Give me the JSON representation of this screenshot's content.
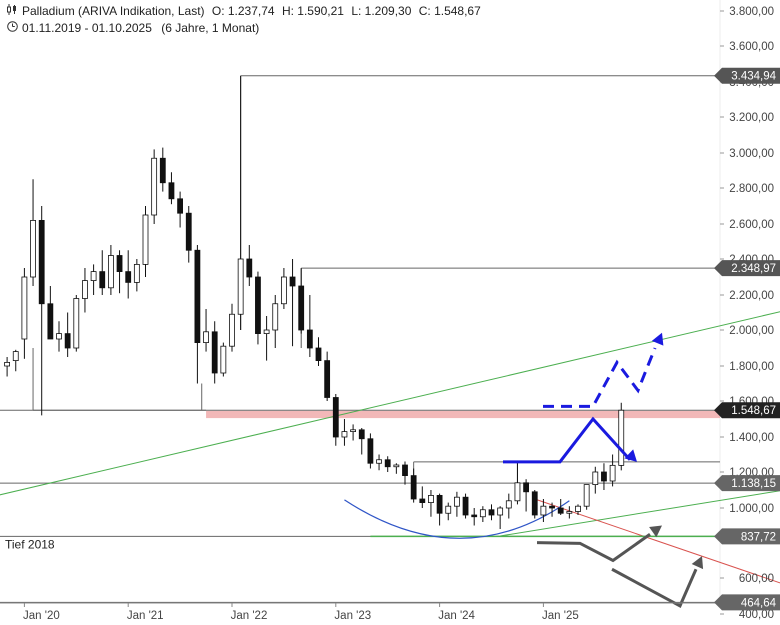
{
  "header": {
    "line1_icon": "candlestick-icon",
    "title": "Palladium (ARIVA Indikation, Last)",
    "open": "O: 1.237,74",
    "high": "H: 1.590,21",
    "low": "L: 1.209,30",
    "close": "C: 1.548,67",
    "line2_icon": "clock-icon",
    "range": "01.11.2019 - 01.10.2025",
    "duration": "(6 Jahre, 1 Monat)"
  },
  "chart_data": {
    "type": "candlestick",
    "interval": "monthly",
    "yaxis": {
      "position": "right",
      "ylim": [
        400,
        3900
      ],
      "ticks": [
        {
          "v": 400,
          "label": "400,00"
        },
        {
          "v": 600,
          "label": "600,00"
        },
        {
          "v": 1000,
          "label": "1.000,00"
        },
        {
          "v": 1200,
          "label": "1.200,00"
        },
        {
          "v": 1400,
          "label": "1.400,00"
        },
        {
          "v": 1600,
          "label": "1.600,00"
        },
        {
          "v": 1800,
          "label": "1.800,00"
        },
        {
          "v": 2000,
          "label": "2.000,00"
        },
        {
          "v": 2200,
          "label": "2.200,00"
        },
        {
          "v": 2400,
          "label": "2.400,00"
        },
        {
          "v": 2600,
          "label": "2.600,00"
        },
        {
          "v": 2800,
          "label": "2.800,00"
        },
        {
          "v": 3000,
          "label": "3.000,00"
        },
        {
          "v": 3200,
          "label": "3.200,00"
        },
        {
          "v": 3400,
          "label": "3.400,00"
        },
        {
          "v": 3600,
          "label": "3.600,00"
        },
        {
          "v": 3800,
          "label": "3.800,00"
        }
      ]
    },
    "xaxis": {
      "ticks": [
        {
          "i": 2,
          "label": "Jan '20"
        },
        {
          "i": 14,
          "label": "Jan '21"
        },
        {
          "i": 26,
          "label": "Jan '22"
        },
        {
          "i": 38,
          "label": "Jan '23"
        },
        {
          "i": 50,
          "label": "Jan '24"
        },
        {
          "i": 62,
          "label": "Jan '25"
        }
      ]
    },
    "candles": [
      {
        "o": 1800,
        "h": 1850,
        "l": 1740,
        "c": 1820
      },
      {
        "o": 1830,
        "h": 1890,
        "l": 1770,
        "c": 1880
      },
      {
        "o": 1950,
        "h": 2350,
        "l": 1840,
        "c": 2300
      },
      {
        "o": 2300,
        "h": 2850,
        "l": 2250,
        "c": 2620
      },
      {
        "o": 2620,
        "h": 2700,
        "l": 1520,
        "c": 2150
      },
      {
        "o": 2150,
        "h": 2250,
        "l": 1950,
        "c": 1950
      },
      {
        "o": 1950,
        "h": 2050,
        "l": 1880,
        "c": 1980
      },
      {
        "o": 1980,
        "h": 2100,
        "l": 1850,
        "c": 1900
      },
      {
        "o": 1900,
        "h": 2200,
        "l": 1880,
        "c": 2180
      },
      {
        "o": 2180,
        "h": 2350,
        "l": 2100,
        "c": 2280
      },
      {
        "o": 2280,
        "h": 2370,
        "l": 2200,
        "c": 2330
      },
      {
        "o": 2330,
        "h": 2450,
        "l": 2200,
        "c": 2240
      },
      {
        "o": 2240,
        "h": 2480,
        "l": 2200,
        "c": 2420
      },
      {
        "o": 2420,
        "h": 2450,
        "l": 2210,
        "c": 2330
      },
      {
        "o": 2330,
        "h": 2450,
        "l": 2180,
        "c": 2270
      },
      {
        "o": 2270,
        "h": 2400,
        "l": 2220,
        "c": 2370
      },
      {
        "o": 2370,
        "h": 2700,
        "l": 2300,
        "c": 2650
      },
      {
        "o": 2650,
        "h": 3020,
        "l": 2600,
        "c": 2970
      },
      {
        "o": 2970,
        "h": 3030,
        "l": 2780,
        "c": 2830
      },
      {
        "o": 2830,
        "h": 2890,
        "l": 2710,
        "c": 2740
      },
      {
        "o": 2740,
        "h": 2780,
        "l": 2580,
        "c": 2660
      },
      {
        "o": 2660,
        "h": 2700,
        "l": 2380,
        "c": 2450
      },
      {
        "o": 2450,
        "h": 2480,
        "l": 1700,
        "c": 1930
      },
      {
        "o": 1930,
        "h": 2120,
        "l": 1880,
        "c": 1990
      },
      {
        "o": 1990,
        "h": 2050,
        "l": 1700,
        "c": 1760
      },
      {
        "o": 1760,
        "h": 1930,
        "l": 1740,
        "c": 1910
      },
      {
        "o": 1910,
        "h": 2150,
        "l": 1880,
        "c": 2090
      },
      {
        "o": 2090,
        "h": 3434,
        "l": 2000,
        "c": 2400
      },
      {
        "o": 2400,
        "h": 2480,
        "l": 2250,
        "c": 2300
      },
      {
        "o": 2300,
        "h": 2330,
        "l": 1920,
        "c": 1980
      },
      {
        "o": 1980,
        "h": 2080,
        "l": 1830,
        "c": 2000
      },
      {
        "o": 2000,
        "h": 2200,
        "l": 1900,
        "c": 2150
      },
      {
        "o": 2150,
        "h": 2350,
        "l": 2120,
        "c": 2300
      },
      {
        "o": 2300,
        "h": 2400,
        "l": 1910,
        "c": 2250
      },
      {
        "o": 2250,
        "h": 2349,
        "l": 1980,
        "c": 2000
      },
      {
        "o": 2000,
        "h": 2200,
        "l": 1850,
        "c": 1900
      },
      {
        "o": 1900,
        "h": 1960,
        "l": 1800,
        "c": 1830
      },
      {
        "o": 1830,
        "h": 1880,
        "l": 1600,
        "c": 1620
      },
      {
        "o": 1620,
        "h": 1640,
        "l": 1350,
        "c": 1400
      },
      {
        "o": 1400,
        "h": 1500,
        "l": 1350,
        "c": 1430
      },
      {
        "o": 1430,
        "h": 1470,
        "l": 1380,
        "c": 1440
      },
      {
        "o": 1440,
        "h": 1450,
        "l": 1300,
        "c": 1390
      },
      {
        "o": 1390,
        "h": 1420,
        "l": 1220,
        "c": 1250
      },
      {
        "o": 1250,
        "h": 1300,
        "l": 1210,
        "c": 1270
      },
      {
        "o": 1270,
        "h": 1290,
        "l": 1200,
        "c": 1230
      },
      {
        "o": 1230,
        "h": 1250,
        "l": 1190,
        "c": 1240
      },
      {
        "o": 1240,
        "h": 1260,
        "l": 1130,
        "c": 1180
      },
      {
        "o": 1180,
        "h": 1220,
        "l": 1030,
        "c": 1050
      },
      {
        "o": 1050,
        "h": 1120,
        "l": 1000,
        "c": 1030
      },
      {
        "o": 1030,
        "h": 1100,
        "l": 950,
        "c": 1070
      },
      {
        "o": 1070,
        "h": 1080,
        "l": 900,
        "c": 970
      },
      {
        "o": 970,
        "h": 1030,
        "l": 930,
        "c": 1010
      },
      {
        "o": 1010,
        "h": 1090,
        "l": 950,
        "c": 1060
      },
      {
        "o": 1060,
        "h": 1080,
        "l": 940,
        "c": 960
      },
      {
        "o": 960,
        "h": 1000,
        "l": 900,
        "c": 950
      },
      {
        "o": 950,
        "h": 1010,
        "l": 920,
        "c": 990
      },
      {
        "o": 990,
        "h": 1020,
        "l": 930,
        "c": 960
      },
      {
        "o": 960,
        "h": 1010,
        "l": 880,
        "c": 1000
      },
      {
        "o": 1000,
        "h": 1080,
        "l": 940,
        "c": 1040
      },
      {
        "o": 1040,
        "h": 1260,
        "l": 1020,
        "c": 1140
      },
      {
        "o": 1140,
        "h": 1160,
        "l": 980,
        "c": 1090
      },
      {
        "o": 1090,
        "h": 1100,
        "l": 940,
        "c": 960
      },
      {
        "o": 960,
        "h": 1050,
        "l": 920,
        "c": 1010
      },
      {
        "o": 1010,
        "h": 1030,
        "l": 950,
        "c": 1000
      },
      {
        "o": 1000,
        "h": 1050,
        "l": 960,
        "c": 970
      },
      {
        "o": 970,
        "h": 1010,
        "l": 940,
        "c": 980
      },
      {
        "o": 980,
        "h": 1020,
        "l": 960,
        "c": 1010
      },
      {
        "o": 1010,
        "h": 1130,
        "l": 990,
        "c": 1130
      },
      {
        "o": 1130,
        "h": 1230,
        "l": 1080,
        "c": 1200
      },
      {
        "o": 1200,
        "h": 1250,
        "l": 1100,
        "c": 1150
      },
      {
        "o": 1150,
        "h": 1300,
        "l": 1120,
        "c": 1238
      },
      {
        "o": 1237.74,
        "h": 1590.21,
        "l": 1209.3,
        "c": 1548.67
      }
    ],
    "levels": [
      {
        "value": 3434.94,
        "label": "3.434,94",
        "color": "#555555",
        "start_i": 27
      },
      {
        "value": 2348.97,
        "label": "2.348,97",
        "color": "#555555",
        "start_i": 34
      },
      {
        "value": 1548.67,
        "label": "1.548,67",
        "color": "#222222",
        "start_i": null
      },
      {
        "value": 1138.15,
        "label": "1.138,15",
        "color": "#666666",
        "start_i": null
      },
      {
        "value": 837.72,
        "label": "837,72",
        "color": "#666666",
        "start_i": null
      },
      {
        "value": 464.64,
        "label": "464,64",
        "color": "#666666",
        "start_i": null
      }
    ],
    "annotations": {
      "tief_label": "Tief 2018",
      "resistance_zone": {
        "from": 1505,
        "to": 1545,
        "color": "#f2b8b8"
      },
      "support_1258": {
        "value": 1258,
        "start_i": 47
      },
      "green_trend_top": {
        "i1": -2,
        "v1": 1060,
        "i2": 95,
        "v2": 2170,
        "color": "#4caf50"
      },
      "green_trend_low": {
        "i1": 57,
        "v1": 840,
        "i2": 95,
        "v2": 1140,
        "color": "#4caf50"
      },
      "red_trend": {
        "i1": 61,
        "v1": 1050,
        "i2": 95,
        "v2": 480,
        "color": "#d9534f"
      },
      "cup_arc": {
        "color": "#2f55c7"
      },
      "blue_color": "#1a1adf",
      "gray_color": "#555555"
    }
  }
}
